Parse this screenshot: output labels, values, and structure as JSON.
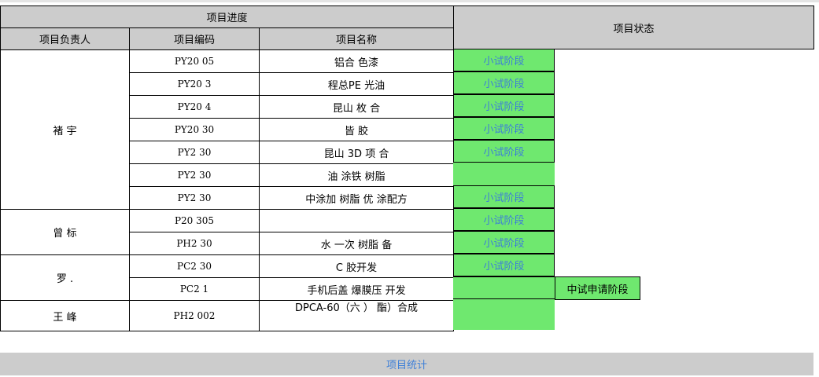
{
  "header": {
    "progress": "项目进度",
    "owner": "项目负责人",
    "code": "项目编码",
    "name": "项目名称",
    "status": "项目状态"
  },
  "owners": [
    "褚 宇",
    "曾 标",
    "罗 .",
    "王 峰"
  ],
  "rows": [
    {
      "code": "PY20      05",
      "name": "铝合      色漆",
      "status": "小试阶段"
    },
    {
      "code": "PY20      3",
      "name": "程总PE      光油",
      "status": "小试阶段"
    },
    {
      "code": "PY20      4",
      "name": "昆山      枚  合",
      "status": "小试阶段"
    },
    {
      "code": "PY20   30",
      "name": "   皆   胶",
      "status": "小试阶段"
    },
    {
      "code": "PY2   30",
      "name": "昆山   3D   项   合",
      "status": "小试阶段"
    },
    {
      "code": "PY2   30",
      "name": "油   涂铁   树脂",
      "status": ""
    },
    {
      "code": "PY2   30",
      "name": "中涂加   树脂   优   涂配方",
      "status": "小试阶段"
    },
    {
      "code": "P20   305",
      "name": "",
      "status": "小试阶段"
    },
    {
      "code": "PH2   30",
      "name": "水   一次   树脂   备",
      "status": "小试阶段"
    },
    {
      "code": "PC2   30",
      "name": "C   胶开发",
      "status": "小试阶段"
    },
    {
      "code": "PC2      1",
      "name": "手机后盖   爆膜压   开发",
      "status": "",
      "status2": "中试申请阶段"
    },
    {
      "code": "PH2      002",
      "name": "DPCA-60（六   ）   酯）合成",
      "status": ""
    }
  ],
  "footer": {
    "label": "项目统计"
  },
  "colors": {
    "green": "#6fe86f",
    "header": "#cccccc",
    "link": "#3d7fd8"
  }
}
